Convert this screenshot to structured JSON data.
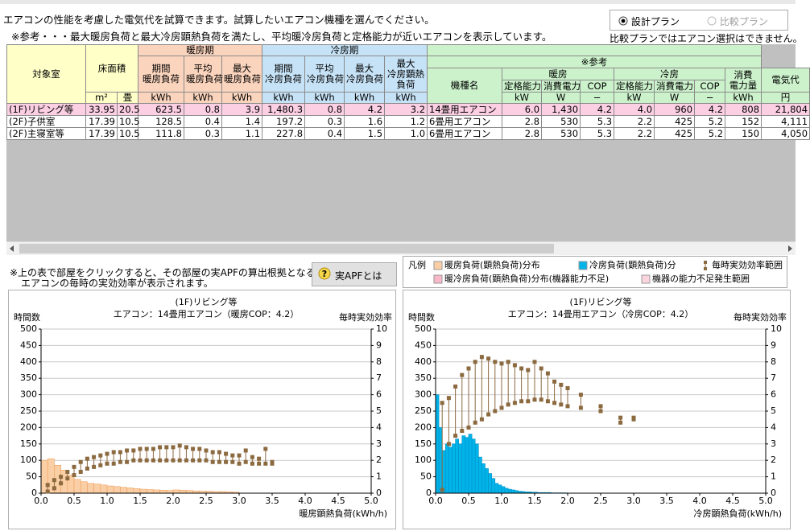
{
  "header": {
    "lines": [
      "エアコンの性能を考慮した電気代を試算できます。試算したいエアコン機種を選んでください。",
      "※参考・・・最大暖房負荷と最大冷房顕熱負荷を満たし、平均暖冷房負荷と定格能力が近いエアコンを表示しています。"
    ]
  },
  "plan": {
    "options": [
      "設計プラン",
      "比較プラン"
    ],
    "note": "比較プランではエアコン選択はできません。"
  },
  "table": {
    "room": "対象室",
    "area": "床面積",
    "heating_period": "暖房期",
    "cooling_period": "冷房期",
    "reference": "※参考",
    "heating_cols": [
      [
        "期間",
        "暖房負荷"
      ],
      [
        "平均",
        "暖房負荷"
      ],
      [
        "最大",
        "暖房負荷"
      ]
    ],
    "cooling_cols": [
      [
        "期間",
        "冷房負荷"
      ],
      [
        "平均",
        "冷房負荷"
      ],
      [
        "最大",
        "冷房負荷"
      ],
      [
        "最大",
        "冷房顕熱",
        "負荷"
      ]
    ],
    "model": "機種名",
    "heating": "暖房",
    "cooling": "冷房",
    "heating_spec": [
      "定格能力",
      "消費電力",
      "COP"
    ],
    "cooling_spec": [
      "定格能力",
      "消費電力",
      "COP"
    ],
    "energy": [
      "消費",
      "電力量"
    ],
    "cost": "電気代",
    "units": [
      "m²",
      "畳",
      "kWh",
      "kWh",
      "kWh",
      "kWh",
      "kWh",
      "kWh",
      "kWh",
      "kW",
      "W",
      "−",
      "kW",
      "W",
      "−",
      "kWh",
      "円"
    ],
    "rows": [
      [
        "(1F)リビング等",
        "33.95",
        "20.5",
        "623.5",
        "0.8",
        "3.9",
        "1,480.3",
        "0.8",
        "4.2",
        "3.2",
        "14畳用エアコン",
        "6.0",
        "1,430",
        "4.2",
        "4.0",
        "960",
        "4.2",
        "808",
        "21,804"
      ],
      [
        "(2F)子供室",
        "17.39",
        "10.5",
        "128.5",
        "0.4",
        "1.4",
        "197.2",
        "0.3",
        "1.6",
        "1.2",
        "6畳用エアコン",
        "2.8",
        "530",
        "5.3",
        "2.2",
        "425",
        "5.2",
        "152",
        "4,111"
      ],
      [
        "(2F)主寝室等",
        "17.39",
        "10.5",
        "111.8",
        "0.3",
        "1.1",
        "227.8",
        "0.4",
        "1.5",
        "1.0",
        "6畳用エアコン",
        "2.8",
        "530",
        "5.3",
        "2.2",
        "425",
        "5.2",
        "150",
        "4,050"
      ]
    ]
  },
  "note": {
    "lines": [
      "※上の表で部屋をクリックすると、その部屋の実APFの算出根拠となる",
      "エアコンの毎時の実効効率が表示されます。"
    ]
  },
  "button": {
    "icon": "?",
    "label": "実APFとは"
  },
  "legend": {
    "title": "凡例",
    "items": [
      {
        "label": "暖房負荷(顕熱負荷)分布",
        "color": "#fbcfa5"
      },
      {
        "label": "冷房負荷(顕熱負荷)分",
        "color": "#00b4ea"
      },
      {
        "label": "毎時実効効率範囲",
        "color": "#8c6a40"
      },
      {
        "label": "暖冷房負荷(顕熱負荷)分布(機器能力不足)",
        "color": "#f8b8c8"
      },
      {
        "label": "機器の能力不足発生範囲",
        "color": "#fbd5de"
      }
    ]
  },
  "chart_data": [
    {
      "type": "histogram",
      "title": "(1F)リビング等",
      "subtitle": "エアコン：14畳用エアコン（暖房COP：4.2）",
      "y_label": "時間数",
      "y2_label": "毎時実効効率",
      "x_label": "暖房顕熱負荷(kWh/h)",
      "color": "#fbcfa5",
      "edge_color": "#eea060",
      "range_color": "#8c6a40",
      "grid": true,
      "bins": [
        0,
        0.1,
        0.2,
        0.3,
        0.4,
        0.5,
        0.6,
        0.7,
        0.8,
        0.9,
        1,
        1.1,
        1.2,
        1.3,
        1.4,
        1.5,
        1.6,
        1.7,
        1.8,
        1.9,
        2,
        2.1,
        2.2,
        2.3,
        2.4,
        2.5,
        2.6,
        2.7,
        2.8,
        2.9,
        3
      ],
      "values": [
        100,
        105,
        85,
        70,
        55,
        42,
        35,
        30,
        28,
        25,
        22,
        20,
        18,
        16,
        14,
        12,
        11,
        10,
        9,
        8,
        10,
        9,
        8,
        7,
        6,
        6,
        5,
        5,
        4,
        3
      ],
      "range_x": [
        0.1,
        0.2,
        0.3,
        0.4,
        0.5,
        0.6,
        0.7,
        0.8,
        0.9,
        1,
        1.1,
        1.2,
        1.3,
        1.4,
        1.5,
        1.6,
        1.7,
        1.8,
        1.9,
        2,
        2.1,
        2.2,
        2.3,
        2.4,
        2.5,
        2.6,
        2.7,
        2.8,
        2.9,
        3,
        3.1,
        3.2,
        3.3,
        3.4,
        3.5
      ],
      "range_low": [
        0.1,
        0.3,
        0.6,
        0.9,
        1.1,
        1.3,
        1.5,
        1.6,
        1.7,
        1.8,
        1.8,
        1.9,
        1.9,
        2.0,
        2.0,
        2.0,
        2.0,
        2.0,
        2.0,
        2.0,
        2.0,
        2.0,
        2.0,
        2.0,
        2.0,
        1.9,
        1.9,
        1.9,
        1.9,
        1.8,
        1.9,
        1.8,
        1.8,
        1.8,
        1.8
      ],
      "range_high": [
        0.5,
        0.8,
        1.0,
        1.3,
        1.6,
        1.9,
        2.1,
        2.2,
        2.3,
        2.4,
        2.5,
        2.5,
        2.6,
        2.6,
        2.7,
        2.7,
        2.7,
        2.8,
        2.8,
        2.8,
        2.9,
        2.8,
        2.7,
        2.7,
        2.6,
        2.5,
        2.5,
        2.4,
        2.3,
        2.3,
        2.6,
        2.2,
        2.1,
        2.7,
        1.9
      ],
      "xlim": [
        0,
        5
      ],
      "xticks": [
        {
          "value": 0,
          "label": "0.0"
        },
        0.5,
        {
          "value": 1,
          "label": "1.0"
        },
        1.5,
        {
          "value": 2,
          "label": "2.0"
        },
        2.5,
        {
          "value": 3,
          "label": "3.0"
        },
        3.5,
        {
          "value": 4,
          "label": "4.0"
        },
        4.5,
        {
          "value": 5,
          "label": "5.0"
        }
      ],
      "ylim": [
        0,
        500
      ],
      "yticks": [
        0,
        50,
        100,
        150,
        200,
        250,
        300,
        350,
        400,
        450,
        500
      ],
      "y2lim": [
        0,
        10
      ],
      "y2ticks": [
        0,
        1,
        2,
        3,
        4,
        5,
        6,
        7,
        8,
        9,
        10
      ]
    },
    {
      "type": "histogram",
      "title": "(1F)リビング等",
      "subtitle": "エアコン：14畳用エアコン（冷房COP：4.2）",
      "y_label": "時間数",
      "y2_label": "毎時実効効率",
      "x_label": "冷房顕熱負荷(kWh/h)",
      "color": "#00b4ea",
      "edge_color": "#0090c8",
      "range_color": "#8c6a40",
      "grid": true,
      "bins": [
        0,
        0.05,
        0.1,
        0.15,
        0.2,
        0.25,
        0.3,
        0.35,
        0.4,
        0.45,
        0.5,
        0.55,
        0.6,
        0.65,
        0.7,
        0.75,
        0.8,
        0.85,
        0.9,
        0.95,
        1,
        1.05,
        1.1,
        1.15,
        1.2,
        1.25,
        1.3,
        1.35,
        1.4,
        1.45,
        1.5,
        1.55,
        1.6,
        1.65,
        1.7,
        1.75,
        1.8,
        1.85,
        1.9,
        1.95,
        2
      ],
      "values": [
        300,
        200,
        130,
        150,
        140,
        150,
        165,
        150,
        175,
        170,
        180,
        165,
        150,
        110,
        90,
        75,
        60,
        45,
        30,
        25,
        20,
        15,
        12,
        10,
        8,
        6,
        5,
        4,
        4,
        3,
        3,
        2,
        2,
        2,
        2,
        1,
        1,
        1,
        1,
        1
      ],
      "range_x": [
        0.1,
        0.2,
        0.3,
        0.4,
        0.5,
        0.6,
        0.7,
        0.8,
        0.9,
        1,
        1.1,
        1.2,
        1.3,
        1.4,
        1.5,
        1.6,
        1.7,
        1.8,
        1.9,
        2,
        2.2,
        2.5,
        2.8,
        3
      ],
      "range_low": [
        0.2,
        3.0,
        3.5,
        3.8,
        4.0,
        4.3,
        4.5,
        4.8,
        5.0,
        5.2,
        5.4,
        5.5,
        5.6,
        5.6,
        5.7,
        5.7,
        5.6,
        5.5,
        5.4,
        5.3,
        5.2,
        5.0,
        4.3,
        4.5
      ],
      "range_high": [
        5.5,
        5.8,
        6.5,
        7.2,
        7.6,
        8.0,
        8.3,
        8.2,
        8.0,
        7.9,
        8.0,
        7.8,
        7.6,
        7.5,
        8.0,
        7.6,
        7.3,
        6.8,
        6.6,
        6.4,
        6.0,
        5.3,
        4.6,
        4.6
      ],
      "xlim": [
        0,
        5
      ],
      "xticks": [
        {
          "value": 0,
          "label": "0.0"
        },
        0.5,
        {
          "value": 1,
          "label": "1.0"
        },
        1.5,
        {
          "value": 2,
          "label": "2.0"
        },
        2.5,
        {
          "value": 3,
          "label": "3.0"
        },
        3.5,
        {
          "value": 4,
          "label": "4.0"
        },
        4.5,
        {
          "value": 5,
          "label": "5.0"
        }
      ],
      "ylim": [
        0,
        500
      ],
      "yticks": [
        0,
        50,
        100,
        150,
        200,
        250,
        300,
        350,
        400,
        450,
        500
      ],
      "y2lim": [
        0,
        10
      ],
      "y2ticks": [
        0,
        1,
        2,
        3,
        4,
        5,
        6,
        7,
        8,
        9,
        10
      ]
    }
  ]
}
